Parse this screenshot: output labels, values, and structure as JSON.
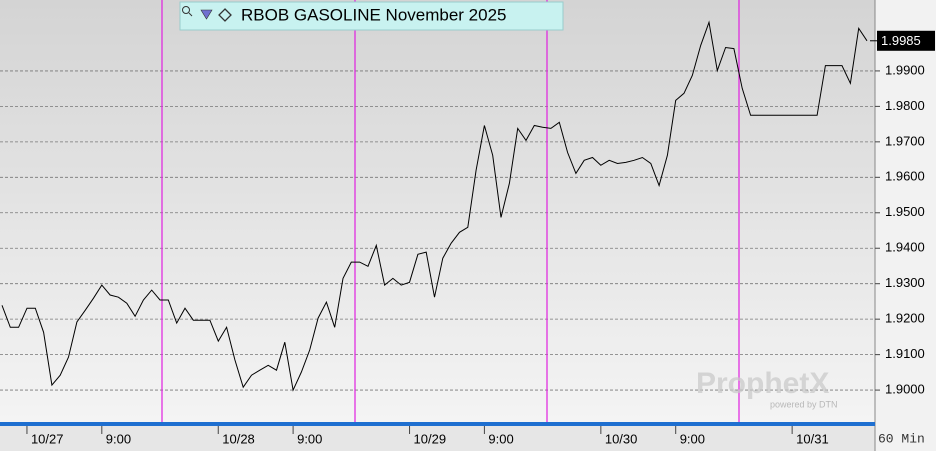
{
  "chart_data": {
    "type": "line",
    "title": "RBOB GASOLINE November 2025",
    "interval": "60 Min",
    "watermark": "ProphetX",
    "watermark_sub": "powered by DTN",
    "categories": [
      null,
      null,
      null,
      "10/27",
      null,
      null,
      null,
      null,
      null,
      null,
      null,
      null,
      "9:00",
      null,
      null,
      null,
      null,
      null,
      null,
      null,
      null,
      null,
      null,
      null,
      null,
      null,
      "10/28",
      null,
      null,
      null,
      null,
      null,
      null,
      null,
      null,
      "9:00",
      null,
      null,
      null,
      null,
      null,
      null,
      null,
      null,
      null,
      null,
      null,
      null,
      null,
      "10/29",
      null,
      null,
      null,
      null,
      null,
      null,
      null,
      null,
      "9:00",
      null,
      null,
      null,
      null,
      null,
      null,
      null,
      null,
      null,
      null,
      null,
      null,
      null,
      "10/30",
      null,
      null,
      null,
      null,
      null,
      null,
      null,
      null,
      "9:00",
      null,
      null,
      null,
      null,
      null,
      null,
      null,
      null,
      null,
      null,
      null,
      null,
      null,
      "10/31",
      null,
      null,
      null,
      null,
      null,
      null,
      null,
      null,
      null
    ],
    "series": [
      {
        "name": "RBOB GASOLINE November 2025",
        "color": "#000000",
        "values": [
          1.9239,
          1.9177,
          1.9177,
          1.9231,
          1.9231,
          1.9163,
          1.9014,
          1.9042,
          1.9093,
          1.9192,
          1.9225,
          1.9259,
          1.9296,
          1.9268,
          1.9262,
          1.9245,
          1.9208,
          1.9254,
          1.9282,
          1.9254,
          1.9254,
          1.9189,
          1.9231,
          1.9197,
          1.9197,
          1.9197,
          1.9138,
          1.9177,
          1.9085,
          1.9008,
          1.9042,
          1.9056,
          1.907,
          1.9056,
          1.9135,
          1.9,
          1.9051,
          1.9113,
          1.9203,
          1.9248,
          1.9177,
          1.9315,
          1.9361,
          1.9361,
          1.9349,
          1.9408,
          1.9296,
          1.9315,
          1.9296,
          1.9304,
          1.9383,
          1.9389,
          1.9262,
          1.9372,
          1.9414,
          1.9445,
          1.9459,
          1.962,
          1.9746,
          1.9662,
          1.9487,
          1.9583,
          1.9738,
          1.9704,
          1.9746,
          1.9741,
          1.9738,
          1.9755,
          1.967,
          1.9611,
          1.9648,
          1.9656,
          1.9634,
          1.9648,
          1.9639,
          1.9642,
          1.9648,
          1.9656,
          1.9639,
          1.9577,
          1.9662,
          1.9817,
          1.9837,
          1.9887,
          1.9972,
          2.0037,
          1.9901,
          1.9966,
          1.9963,
          1.9851,
          1.9775,
          1.9775,
          1.9775,
          1.9775,
          1.9775,
          1.9775,
          1.9775,
          1.9775,
          1.9775,
          1.9915,
          1.9915,
          1.9915,
          1.9865,
          2.002,
          1.9985
        ]
      }
    ],
    "last_price": {
      "value": 1.9985,
      "label": "1.9985"
    },
    "ylim": [
      1.891,
      2.01
    ],
    "yticks": [
      {
        "value": 1.9,
        "label": "1.9000"
      },
      {
        "value": 1.91,
        "label": "1.9100"
      },
      {
        "value": 1.92,
        "label": "1.9200"
      },
      {
        "value": 1.93,
        "label": "1.9300"
      },
      {
        "value": 1.94,
        "label": "1.9400"
      },
      {
        "value": 1.95,
        "label": "1.9500"
      },
      {
        "value": 1.96,
        "label": "1.9600"
      },
      {
        "value": 1.97,
        "label": "1.9700"
      },
      {
        "value": 1.98,
        "label": "1.9800"
      },
      {
        "value": 1.99,
        "label": "1.9900"
      }
    ],
    "grid": true
  }
}
